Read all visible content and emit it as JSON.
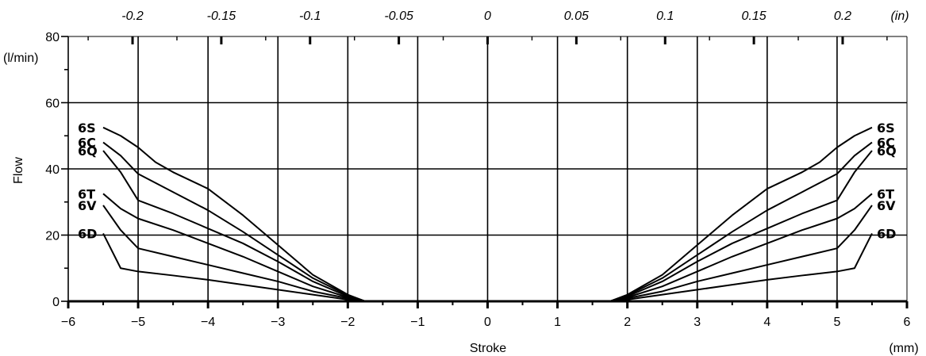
{
  "chart_data": {
    "type": "line",
    "xlabel": "Stroke",
    "x_unit": "(mm)",
    "ylabel": "Flow",
    "y_unit": "(l/min)",
    "top_axis_unit": "(in)",
    "xlim": [
      -6,
      6
    ],
    "ylim": [
      0,
      80
    ],
    "x_ticks": [
      "-6",
      "-5",
      "-4",
      "-3",
      "-2",
      "-1",
      "0",
      "1",
      "2",
      "3",
      "4",
      "5",
      "6"
    ],
    "y_ticks": [
      "0",
      "20",
      "40",
      "60",
      "80"
    ],
    "top_ticks": [
      {
        "value": -0.2,
        "label": "-0.2"
      },
      {
        "value": -0.15,
        "label": "-0.15"
      },
      {
        "value": -0.1,
        "label": "-0.1"
      },
      {
        "value": -0.05,
        "label": "-0.05"
      },
      {
        "value": 0,
        "label": "0"
      },
      {
        "value": 0.05,
        "label": "0.05"
      },
      {
        "value": 0.1,
        "label": "0.1"
      },
      {
        "value": 0.15,
        "label": "0.15"
      },
      {
        "value": 0.2,
        "label": "0.2"
      }
    ],
    "grid": "on",
    "series": [
      {
        "name": "6S",
        "x": [
          1.75,
          2,
          2.5,
          3,
          3.5,
          4,
          4.5,
          4.75,
          5,
          5.25,
          5.5
        ],
        "y": [
          0,
          2,
          8,
          17,
          26,
          34,
          39,
          42,
          46.5,
          50,
          52.5
        ]
      },
      {
        "name": "6C",
        "x": [
          1.75,
          2,
          2.5,
          3,
          3.5,
          4,
          4.5,
          5,
          5.25,
          5.5
        ],
        "y": [
          0,
          1.8,
          7,
          14,
          21,
          27.5,
          33,
          38.5,
          44,
          48
        ]
      },
      {
        "name": "6Q",
        "x": [
          1.75,
          2,
          2.5,
          3,
          3.5,
          4,
          4.5,
          5,
          5.25,
          5.5
        ],
        "y": [
          0,
          1.5,
          6,
          12,
          17.5,
          22,
          26.5,
          30.5,
          39,
          45.5
        ]
      },
      {
        "name": "6T",
        "x": [
          1.75,
          2,
          2.5,
          3,
          3.5,
          4,
          4.5,
          5,
          5.25,
          5.5
        ],
        "y": [
          0,
          1.2,
          4.5,
          9,
          13.5,
          17.5,
          21.5,
          25,
          28,
          32.5
        ]
      },
      {
        "name": "6V",
        "x": [
          1.75,
          2,
          2.5,
          3,
          3.5,
          4,
          4.5,
          5,
          5.25,
          5.5
        ],
        "y": [
          0,
          0.9,
          3,
          6,
          8.5,
          11,
          13.5,
          16,
          21.5,
          29
        ]
      },
      {
        "name": "6D",
        "x": [
          1.75,
          2,
          2.5,
          3,
          3.5,
          4,
          4.5,
          5,
          5.25,
          5.5
        ],
        "y": [
          0,
          0.5,
          2,
          3.5,
          5,
          6.5,
          7.8,
          9,
          10,
          20.5
        ]
      }
    ],
    "symmetric_about_zero": true,
    "series_label_placement": "both sides, at curve ends"
  }
}
